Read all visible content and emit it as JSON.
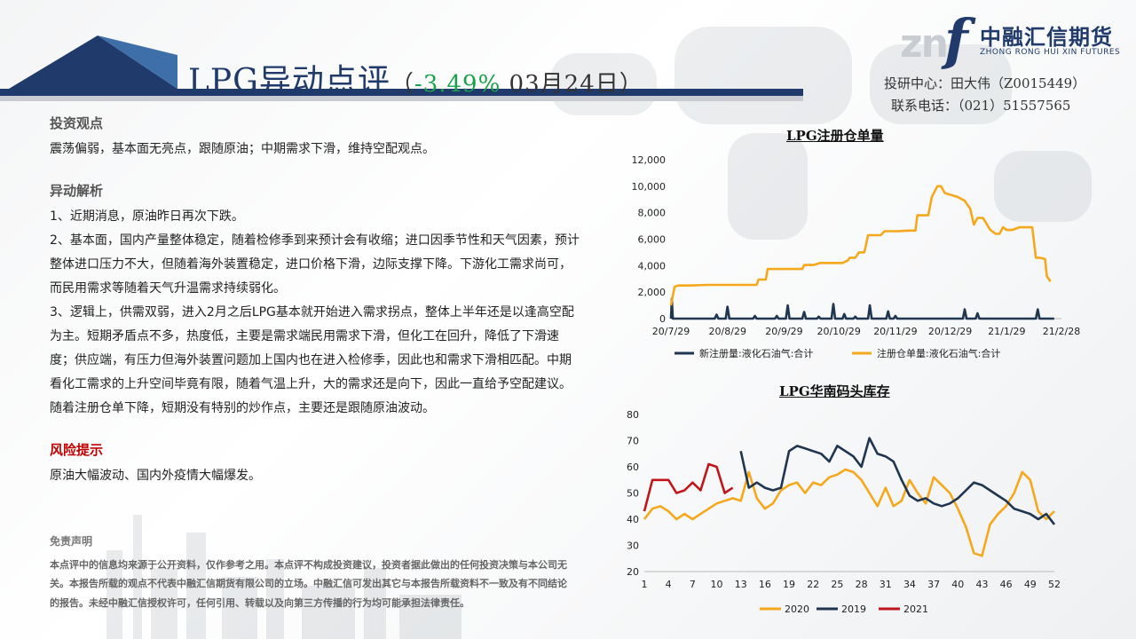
{
  "header": {
    "title_main": "LPG异动点评",
    "title_open": "（",
    "title_pct": "-3.49%",
    "title_date": " 03月24日）"
  },
  "logo": {
    "mark": "zn",
    "f": "f",
    "cn": "中融汇信期货",
    "en": "ZHONG RONG HUI XIN FUTURES"
  },
  "contact": {
    "line1": "投研中心：田大伟（Z0015449）",
    "line2": "联系电话：（021）51557565"
  },
  "sections": {
    "view_title": "投资观点",
    "view_text": "震荡偏弱，基本面无亮点，跟随原油；中期需求下滑，维持空配观点。",
    "analysis_title": "异动解析",
    "analysis_1": "1、近期消息，原油昨日再次下跌。",
    "analysis_2": "2、基本面，国内产量整体稳定，随着检修季到来预计会有收缩；进口因季节性和天气因素，预计整体进口压力不大，但随着海外装置稳定，进口价格下滑，边际支撑下降。下游化工需求尚可，而民用需求等随着天气升温需求持续弱化。",
    "analysis_3": "3、逻辑上，供需双弱，进入2月之后LPG基本就开始进入需求拐点，整体上半年还是以逢高空配为主。短期矛盾点不多，热度低，主要是需求端民用需求下滑，但化工在回升，降低了下滑速度；供应端，有压力但海外装置问题加上国内也在进入检修季，因此也和需求下滑相匹配。中期看化工需求的上升空间毕竟有限，随着气温上升，大的需求还是向下，因此一直给予空配建议。随着注册仓单下降，短期没有特别的炒作点，主要还是跟随原油波动。",
    "risk_title": "风险提示",
    "risk_text": "原油大幅波动、国内外疫情大幅爆发。"
  },
  "disclaimer": {
    "title": "免责声明",
    "text": "本点评中的信息均来源于公开资料，仅作参考之用。本点评不构成投资建议，投资者据此做出的任何投资决策与本公司无关。本报告所载的观点不代表中融汇信期货有限公司的立场。中融汇信可发出其它与本报告所载资料不一致及有不同结论的报告。未经中融汇信授权许可，任何引用、转载以及向第三方传播的行为均可能承担法律责任。"
  },
  "colors": {
    "navy": "#1f3a6b",
    "orange": "#f5a81c",
    "darkblue": "#1f3550",
    "red": "#c0151b",
    "green": "#1aa14a"
  },
  "chart_data": [
    {
      "type": "line",
      "title": "LPG注册仓单量",
      "ylim": [
        0,
        12000
      ],
      "yticks": [
        "0",
        "2,000",
        "4,000",
        "6,000",
        "8,000",
        "10,000",
        "12,000"
      ],
      "xticks": [
        "20/7/29",
        "20/8/29",
        "20/9/29",
        "20/10/29",
        "20/11/29",
        "20/12/29",
        "21/1/29",
        "21/2/28"
      ],
      "legend_position": "bottom",
      "series": [
        {
          "name": "新注册量:液化石油气:合计",
          "color": "#1f3550",
          "points": [
            [
              0,
              0
            ],
            [
              0.5,
              1500
            ],
            [
              1,
              0
            ],
            [
              24,
              0
            ],
            [
              25,
              300
            ],
            [
              26,
              0
            ],
            [
              30,
              0
            ],
            [
              31,
              900
            ],
            [
              32,
              0
            ],
            [
              45,
              0
            ],
            [
              46,
              200
            ],
            [
              47,
              0
            ],
            [
              57,
              0
            ],
            [
              58,
              200
            ],
            [
              59,
              0
            ],
            [
              63,
              0
            ],
            [
              64,
              1000
            ],
            [
              65,
              0
            ],
            [
              72,
              0
            ],
            [
              73,
              500
            ],
            [
              74,
              0
            ],
            [
              80,
              0
            ],
            [
              81,
              150
            ],
            [
              82,
              0
            ],
            [
              88,
              0
            ],
            [
              89,
              1100
            ],
            [
              90,
              0
            ],
            [
              94,
              0
            ],
            [
              95,
              350
            ],
            [
              96,
              0
            ],
            [
              100,
              0
            ],
            [
              101,
              150
            ],
            [
              102,
              0
            ],
            [
              108,
              0
            ],
            [
              109,
              1000
            ],
            [
              110,
              0
            ],
            [
              118,
              0
            ],
            [
              119,
              550
            ],
            [
              120,
              0
            ],
            [
              122,
              0
            ],
            [
              123,
              200
            ],
            [
              124,
              0
            ],
            [
              160,
              0
            ],
            [
              161,
              700
            ],
            [
              162,
              0
            ],
            [
              167,
              0
            ],
            [
              168,
              400
            ],
            [
              169,
              0
            ],
            [
              180,
              0
            ],
            [
              200,
              0
            ],
            [
              201,
              700
            ],
            [
              202,
              0
            ],
            [
              210,
              0
            ]
          ]
        },
        {
          "name": "注册仓单量:液化石油气:合计",
          "color": "#f5a81c",
          "points": [
            [
              0,
              1000
            ],
            [
              2,
              2400
            ],
            [
              4,
              2500
            ],
            [
              10,
              2500
            ],
            [
              20,
              2550
            ],
            [
              30,
              2550
            ],
            [
              46,
              2550
            ],
            [
              47,
              2550
            ],
            [
              48,
              2950
            ],
            [
              52,
              2950
            ],
            [
              53,
              3750
            ],
            [
              72,
              3750
            ],
            [
              73,
              4050
            ],
            [
              78,
              4050
            ],
            [
              82,
              4200
            ],
            [
              94,
              4200
            ],
            [
              97,
              4400
            ],
            [
              98,
              4600
            ],
            [
              101,
              4600
            ],
            [
              103,
              5000
            ],
            [
              106,
              5000
            ],
            [
              108,
              6300
            ],
            [
              115,
              6300
            ],
            [
              117,
              6600
            ],
            [
              125,
              6600
            ],
            [
              130,
              6650
            ],
            [
              134,
              6650
            ],
            [
              135,
              7800
            ],
            [
              141,
              7800
            ],
            [
              143,
              9200
            ],
            [
              146,
              10000
            ],
            [
              148,
              10000
            ],
            [
              150,
              9500
            ],
            [
              152,
              9400
            ],
            [
              157,
              9200
            ],
            [
              161,
              8900
            ],
            [
              164,
              8300
            ],
            [
              166,
              7100
            ],
            [
              168,
              7600
            ],
            [
              171,
              7600
            ],
            [
              175,
              6700
            ],
            [
              178,
              6400
            ],
            [
              180,
              6400
            ],
            [
              182,
              6900
            ],
            [
              184,
              6700
            ],
            [
              187,
              6700
            ],
            [
              191,
              6900
            ],
            [
              198,
              6900
            ],
            [
              200,
              4600
            ],
            [
              202,
              4600
            ],
            [
              205,
              4500
            ],
            [
              206,
              3200
            ],
            [
              208,
              2800
            ]
          ]
        }
      ]
    },
    {
      "type": "line",
      "title": "LPG华南码头库存",
      "ylim": [
        20,
        80
      ],
      "yticks": [
        "20",
        "30",
        "40",
        "50",
        "60",
        "70",
        "80"
      ],
      "xticks": [
        "1",
        "4",
        "7",
        "10",
        "13",
        "16",
        "19",
        "22",
        "25",
        "28",
        "31",
        "34",
        "37",
        "40",
        "43",
        "46",
        "49",
        "52"
      ],
      "legend_position": "bottom",
      "series": [
        {
          "name": "2020",
          "color": "#f5a81c",
          "points": [
            [
              1,
              40
            ],
            [
              2,
              44
            ],
            [
              3,
              45
            ],
            [
              4,
              43
            ],
            [
              5,
              40
            ],
            [
              6,
              42
            ],
            [
              7,
              40
            ],
            [
              8,
              42
            ],
            [
              9,
              44
            ],
            [
              10,
              46
            ],
            [
              11,
              47
            ],
            [
              12,
              48
            ],
            [
              13,
              47
            ],
            [
              14,
              58
            ],
            [
              15,
              48
            ],
            [
              16,
              44
            ],
            [
              17,
              46
            ],
            [
              18,
              51
            ],
            [
              19,
              53
            ],
            [
              20,
              54
            ],
            [
              21,
              50
            ],
            [
              22,
              54
            ],
            [
              23,
              53
            ],
            [
              24,
              56
            ],
            [
              25,
              57
            ],
            [
              26,
              59
            ],
            [
              27,
              58
            ],
            [
              28,
              55
            ],
            [
              29,
              50
            ],
            [
              30,
              45
            ],
            [
              31,
              52
            ],
            [
              32,
              45
            ],
            [
              33,
              47
            ],
            [
              34,
              55
            ],
            [
              35,
              50
            ],
            [
              36,
              46
            ],
            [
              37,
              56
            ],
            [
              38,
              53
            ],
            [
              39,
              50
            ],
            [
              40,
              44
            ],
            [
              41,
              37
            ],
            [
              42,
              27
            ],
            [
              43,
              26
            ],
            [
              44,
              38
            ],
            [
              45,
              42
            ],
            [
              46,
              45
            ],
            [
              47,
              50
            ],
            [
              48,
              58
            ],
            [
              49,
              55
            ],
            [
              50,
              43
            ],
            [
              51,
              40
            ],
            [
              52,
              43
            ]
          ]
        },
        {
          "name": "2019",
          "color": "#1f3550",
          "points": [
            [
              13,
              66
            ],
            [
              14,
              52
            ],
            [
              15,
              54
            ],
            [
              16,
              52
            ],
            [
              17,
              51
            ],
            [
              18,
              52
            ],
            [
              19,
              66
            ],
            [
              20,
              68
            ],
            [
              21,
              67
            ],
            [
              22,
              66
            ],
            [
              23,
              65
            ],
            [
              24,
              62
            ],
            [
              25,
              68
            ],
            [
              26,
              66
            ],
            [
              27,
              64
            ],
            [
              28,
              60
            ],
            [
              29,
              71
            ],
            [
              30,
              65
            ],
            [
              31,
              64
            ],
            [
              32,
              62
            ],
            [
              33,
              55
            ],
            [
              34,
              49
            ],
            [
              35,
              47
            ],
            [
              36,
              48
            ],
            [
              37,
              46
            ],
            [
              38,
              45
            ],
            [
              39,
              46
            ],
            [
              40,
              48
            ],
            [
              41,
              51
            ],
            [
              42,
              54
            ],
            [
              43,
              53
            ],
            [
              44,
              51
            ],
            [
              45,
              49
            ],
            [
              46,
              47
            ],
            [
              47,
              44
            ],
            [
              48,
              43
            ],
            [
              49,
              42
            ],
            [
              50,
              40
            ],
            [
              51,
              42
            ],
            [
              52,
              38
            ]
          ]
        },
        {
          "name": "2021",
          "color": "#c0151b",
          "points": [
            [
              1,
              43
            ],
            [
              2,
              55
            ],
            [
              3,
              55
            ],
            [
              4,
              55
            ],
            [
              5,
              50
            ],
            [
              6,
              51
            ],
            [
              7,
              54
            ],
            [
              8,
              51
            ],
            [
              9,
              61
            ],
            [
              10,
              60
            ],
            [
              11,
              50
            ],
            [
              12,
              52
            ]
          ]
        }
      ]
    }
  ]
}
